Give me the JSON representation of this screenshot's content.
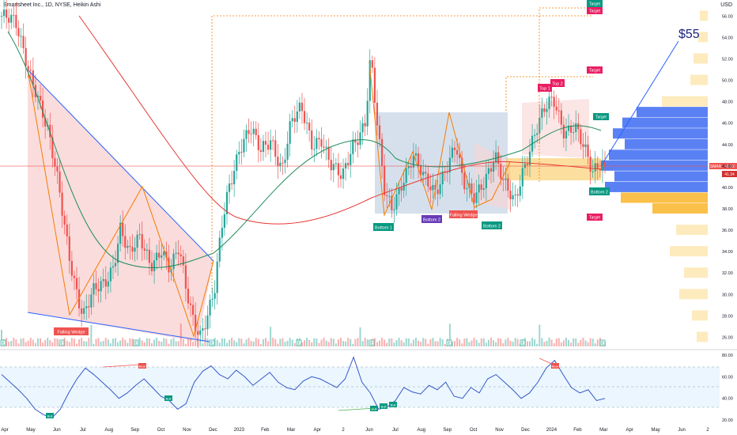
{
  "header": {
    "title": "Smartsheet Inc., 1D, NYSE, Heikin Ashi",
    "currency": "USD"
  },
  "annotations": {
    "target_price": "$55",
    "falling_wedge": "Falling Wedge",
    "bottom_1": "Bottom 1",
    "bottom_2": "Bottom 2",
    "top_1": "Top 1",
    "top_2": "Top 2",
    "target": "Target",
    "bull": "Bull",
    "bear": "Bear",
    "ticker_tag": "SMAR",
    "price_last": "41.92",
    "price_ma": "41.34",
    "event_e": "E"
  },
  "colors": {
    "up": "#26a69a",
    "down": "#ef5350",
    "wedge_fill": "#f8c8c8",
    "trend_line": "#2962ff",
    "ma_green": "#1e8c5a",
    "ma_red": "#e53935",
    "rsi": "#3559c7",
    "target_box": "#e91e63",
    "volume_profile_blue": "#3d6bf2",
    "volume_profile_orange": "#f9b529",
    "volume_profile_light": "#fde9b7"
  },
  "chart_data": [
    {
      "type": "line",
      "subtype": "heikin-ashi candlestick",
      "title": "Smartsheet Inc., 1D, NYSE, Heikin Ashi",
      "x_tick_labels": [
        "Apr",
        "May",
        "Jun",
        "Jul",
        "Aug",
        "Sep",
        "Oct",
        "Nov",
        "Dec",
        "2023",
        "Feb",
        "Mar",
        "Apr",
        "2",
        "Jun",
        "Jul",
        "Aug",
        "Sep",
        "Oct",
        "Nov",
        "Dec",
        "2024",
        "Feb",
        "Mar",
        "Apr",
        "May",
        "Jun",
        "2"
      ],
      "y_tick_labels": [
        "26.00",
        "28.00",
        "30.00",
        "32.00",
        "34.00",
        "36.00",
        "38.00",
        "40.00",
        "42.00",
        "44.00",
        "46.00",
        "48.00",
        "50.00",
        "52.00",
        "54.00",
        "56.00"
      ],
      "ylim": [
        25,
        57.5
      ],
      "price_path": [
        [
          0,
          56
        ],
        [
          0.8,
          55
        ],
        [
          1.4,
          52
        ],
        [
          2,
          49
        ],
        [
          2.6,
          45
        ],
        [
          3.2,
          40
        ],
        [
          3.8,
          34
        ],
        [
          4.3,
          30
        ],
        [
          4.6,
          28
        ],
        [
          5.2,
          30
        ],
        [
          5.8,
          31
        ],
        [
          6.3,
          33
        ],
        [
          6.7,
          36.5
        ],
        [
          7.2,
          33.5
        ],
        [
          7.8,
          35
        ],
        [
          8.4,
          33
        ],
        [
          9,
          34.5
        ],
        [
          9.5,
          32
        ],
        [
          10,
          34
        ],
        [
          10.4,
          30.5
        ],
        [
          10.8,
          28
        ],
        [
          11.2,
          26.5
        ],
        [
          11.6,
          28
        ],
        [
          12,
          30
        ],
        [
          12.4,
          36
        ],
        [
          12.8,
          40
        ],
        [
          13.4,
          44
        ],
        [
          14,
          45.5
        ],
        [
          14.6,
          43
        ],
        [
          15.2,
          44.5
        ],
        [
          15.8,
          42
        ],
        [
          16.3,
          46
        ],
        [
          16.9,
          47
        ],
        [
          17.5,
          44
        ],
        [
          18,
          45
        ],
        [
          18.6,
          42
        ],
        [
          19.2,
          40.5
        ],
        [
          19.8,
          44
        ],
        [
          20.5,
          46.5
        ],
        [
          20.8,
          52.5
        ],
        [
          21.2,
          45
        ],
        [
          21.6,
          39
        ],
        [
          22,
          38
        ],
        [
          22.6,
          41
        ],
        [
          23.2,
          43
        ],
        [
          23.8,
          40.5
        ],
        [
          24.4,
          39.5
        ],
        [
          25,
          42
        ],
        [
          25.6,
          44
        ],
        [
          26,
          40
        ],
        [
          26.6,
          39
        ],
        [
          27.2,
          41
        ],
        [
          27.8,
          43
        ],
        [
          28.3,
          40
        ],
        [
          28.9,
          38.5
        ],
        [
          29.4,
          42
        ],
        [
          30,
          45
        ],
        [
          30.6,
          47
        ],
        [
          31.1,
          48
        ],
        [
          31.7,
          45.5
        ],
        [
          32.3,
          46
        ],
        [
          32.8,
          43.5
        ],
        [
          33.3,
          41
        ],
        [
          33.8,
          42.5
        ],
        [
          34,
          41.92
        ]
      ]
    },
    {
      "type": "line",
      "title": "RSI",
      "y_tick_labels": [
        "20.00",
        "40.00",
        "60.00",
        "80.00"
      ],
      "ylim": [
        15,
        85
      ],
      "bands": [
        30,
        70
      ],
      "values": [
        62,
        55,
        48,
        40,
        30,
        25,
        22,
        30,
        45,
        58,
        68,
        62,
        55,
        48,
        40,
        45,
        52,
        58,
        50,
        42,
        38,
        30,
        35,
        55,
        65,
        70,
        62,
        58,
        66,
        60,
        52,
        58,
        64,
        55,
        50,
        48,
        56,
        60,
        58,
        54,
        50,
        58,
        78,
        55,
        45,
        30,
        32,
        38,
        50,
        46,
        44,
        52,
        48,
        55,
        42,
        40,
        50,
        45,
        58,
        62,
        55,
        48,
        40,
        45,
        55,
        68,
        75,
        62,
        50,
        45,
        48,
        38,
        40
      ]
    }
  ],
  "volume_profile_levels": [
    "38.00",
    "40.00",
    "42.00",
    "44.00",
    "46.00",
    "48.00"
  ]
}
